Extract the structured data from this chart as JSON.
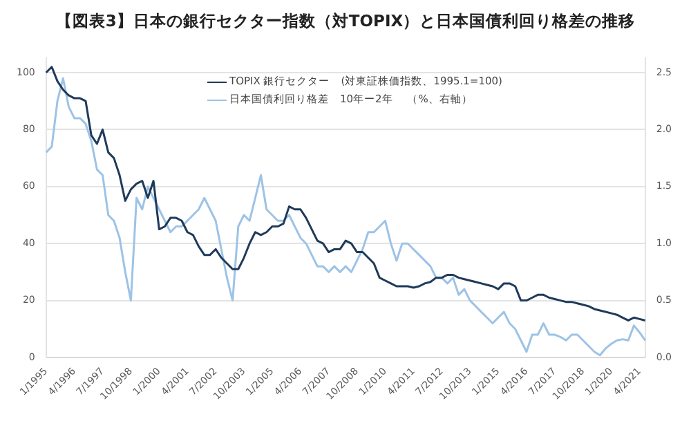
{
  "chart_data": {
    "type": "line",
    "title": "【図表3】日本の銀行セクター指数（対TOPIX）と日本国債利回り格差の推移",
    "categories": [
      "1/1995",
      null,
      null,
      null,
      null,
      "4/1996",
      null,
      null,
      null,
      null,
      "7/1997",
      null,
      null,
      null,
      null,
      "10/1998",
      null,
      null,
      null,
      null,
      "1/2000",
      null,
      null,
      null,
      null,
      "4/2001",
      null,
      null,
      null,
      null,
      "7/2002",
      null,
      null,
      null,
      null,
      "10/2003",
      null,
      null,
      null,
      null,
      "1/2005",
      null,
      null,
      null,
      null,
      "4/2006",
      null,
      null,
      null,
      null,
      "7/2007",
      null,
      null,
      null,
      null,
      "10/2008",
      null,
      null,
      null,
      null,
      "1/2010",
      null,
      null,
      null,
      null,
      "4/2011",
      null,
      null,
      null,
      null,
      "7/2012",
      null,
      null,
      null,
      null,
      "10/2013",
      null,
      null,
      null,
      null,
      "1/2015",
      null,
      null,
      null,
      null,
      "4/2016",
      null,
      null,
      null,
      null,
      "7/2017",
      null,
      null,
      null,
      null,
      "10/2018",
      null,
      null,
      null,
      null,
      "1/2020",
      null,
      null,
      null,
      null,
      "4/2021",
      null
    ],
    "series": [
      {
        "name": "TOPIX 銀行セクター　(対東証株価指数、1995.1=100)",
        "color": "#1f3a5a",
        "values": [
          100,
          102,
          97,
          94,
          92,
          91,
          91,
          90,
          78,
          75,
          80,
          72,
          70,
          64,
          55,
          59,
          61,
          62,
          56,
          62,
          45,
          46,
          49,
          49,
          48,
          44,
          43,
          39,
          36,
          36,
          38,
          35,
          33,
          31,
          31,
          35,
          40,
          44,
          43,
          44,
          46,
          46,
          47,
          53,
          52,
          52,
          49,
          45,
          41,
          40,
          37,
          38,
          38,
          41,
          40,
          37,
          37,
          35,
          33,
          28,
          27,
          26,
          25,
          25,
          25,
          24.5,
          25,
          26,
          26.5,
          28,
          28,
          29,
          29,
          28,
          27.5,
          27,
          26.5,
          26,
          25.5,
          25,
          24,
          26,
          26,
          25,
          20,
          20,
          21,
          22,
          22,
          21,
          20.5,
          20,
          19.5,
          19.5,
          19,
          18.5,
          18,
          17,
          16.5,
          16,
          15.5,
          15,
          14,
          13,
          14,
          13.5,
          13
        ]
      },
      {
        "name": "日本国債利回り格差　10年ー2年　 （%、右軸）",
        "color": "#9dc3e6",
        "axis": "y2",
        "values": [
          1.8,
          1.85,
          2.25,
          2.45,
          2.2,
          2.1,
          2.1,
          2.05,
          1.9,
          1.65,
          1.6,
          1.25,
          1.2,
          1.05,
          0.75,
          0.5,
          1.4,
          1.3,
          1.5,
          1.4,
          1.3,
          1.2,
          1.1,
          1.15,
          1.15,
          1.2,
          1.25,
          1.3,
          1.4,
          1.3,
          1.2,
          0.95,
          0.7,
          0.5,
          1.15,
          1.25,
          1.2,
          1.4,
          1.6,
          1.3,
          1.25,
          1.2,
          1.2,
          1.25,
          1.15,
          1.05,
          1.0,
          0.9,
          0.8,
          0.8,
          0.75,
          0.8,
          0.75,
          0.8,
          0.75,
          0.85,
          0.95,
          1.1,
          1.1,
          1.15,
          1.2,
          1.0,
          0.85,
          1.0,
          1.0,
          0.95,
          0.9,
          0.85,
          0.8,
          0.7,
          0.7,
          0.65,
          0.7,
          0.55,
          0.6,
          0.5,
          0.45,
          0.4,
          0.35,
          0.3,
          0.35,
          0.4,
          0.3,
          0.25,
          0.15,
          0.05,
          0.2,
          0.2,
          0.3,
          0.2,
          0.2,
          0.18,
          0.15,
          0.2,
          0.2,
          0.15,
          0.1,
          0.05,
          0.02,
          0.08,
          0.12,
          0.15,
          0.16,
          0.15,
          0.28,
          0.22,
          0.15
        ]
      }
    ],
    "ylim": [
      0,
      105
    ],
    "yticks": [
      0,
      20,
      40,
      60,
      80,
      100
    ],
    "y2lim": [
      0,
      2.625
    ],
    "y2ticks": [
      {
        "value": 0,
        "label": "0.0"
      },
      {
        "value": 0.5,
        "label": "0.5"
      },
      {
        "value": 1,
        "label": "1.0"
      },
      {
        "value": 1.5,
        "label": "1.5"
      },
      {
        "value": 2,
        "label": "2.0"
      },
      {
        "value": 2.5,
        "label": "2.5"
      }
    ],
    "grid": "y",
    "legend": "top",
    "marker": "none",
    "line_style": "solid"
  }
}
